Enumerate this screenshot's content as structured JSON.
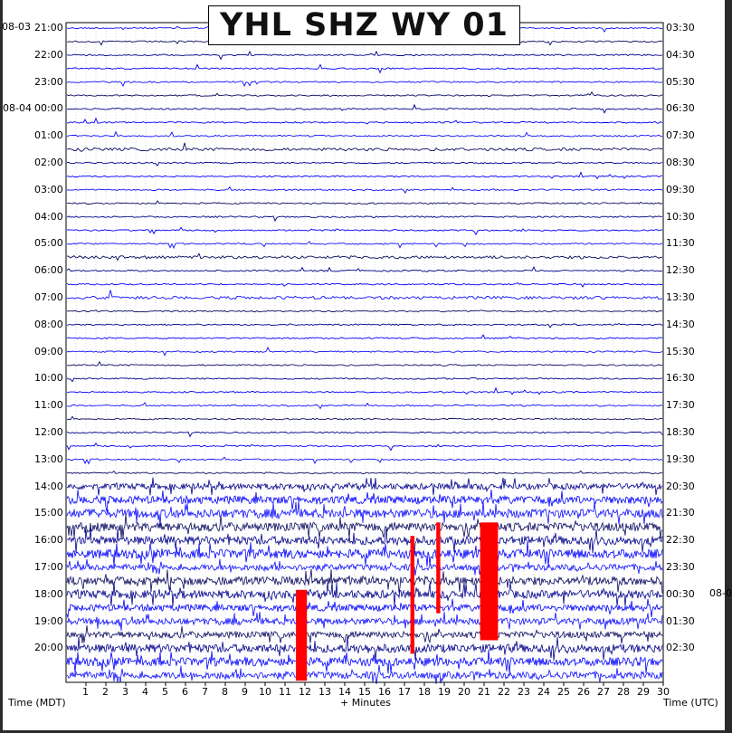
{
  "title": "YHL SHZ WY 01",
  "left_start_date": "08-03",
  "left_date_change": "08-04",
  "right_date_change": "08-0",
  "xlabel_left": "Time (MDT)",
  "xlabel_center": "+ Minutes",
  "xlabel_right": "Time (UTC)",
  "chart_data": {
    "type": "line",
    "title": "YHL SHZ WY 01",
    "x_ticks": [
      "1",
      "2",
      "3",
      "4",
      "5",
      "6",
      "7",
      "8",
      "9",
      "10",
      "11",
      "12",
      "13",
      "14",
      "15",
      "16",
      "17",
      "18",
      "19",
      "20",
      "21",
      "22",
      "23",
      "24",
      "25",
      "26",
      "27",
      "28",
      "29",
      "30"
    ],
    "xlim": [
      0,
      30
    ],
    "x_unit": "minutes",
    "rows_per_hour": 2,
    "row_duration_minutes": 30,
    "left_hour_labels": [
      {
        "date": "08-03",
        "time": "21:00"
      },
      {
        "date": "",
        "time": "22:00"
      },
      {
        "date": "",
        "time": "23:00"
      },
      {
        "date": "08-04",
        "time": "00:00"
      },
      {
        "date": "",
        "time": "01:00"
      },
      {
        "date": "",
        "time": "02:00"
      },
      {
        "date": "",
        "time": "03:00"
      },
      {
        "date": "",
        "time": "04:00"
      },
      {
        "date": "",
        "time": "05:00"
      },
      {
        "date": "",
        "time": "06:00"
      },
      {
        "date": "",
        "time": "07:00"
      },
      {
        "date": "",
        "time": "08:00"
      },
      {
        "date": "",
        "time": "09:00"
      },
      {
        "date": "",
        "time": "10:00"
      },
      {
        "date": "",
        "time": "11:00"
      },
      {
        "date": "",
        "time": "12:00"
      },
      {
        "date": "",
        "time": "13:00"
      },
      {
        "date": "",
        "time": "14:00"
      },
      {
        "date": "",
        "time": "15:00"
      },
      {
        "date": "",
        "time": "16:00"
      },
      {
        "date": "",
        "time": "17:00"
      },
      {
        "date": "",
        "time": "18:00"
      },
      {
        "date": "",
        "time": "19:00"
      },
      {
        "date": "",
        "time": "20:00"
      }
    ],
    "right_hour_labels": [
      "03:30",
      "04:30",
      "05:30",
      "06:30",
      "07:30",
      "08:30",
      "09:30",
      "10:30",
      "11:30",
      "12:30",
      "13:30",
      "14:30",
      "15:30",
      "16:30",
      "17:30",
      "18:30",
      "19:30",
      "20:30",
      "21:30",
      "22:30",
      "23:30",
      "00:30",
      "01:30",
      "02:30"
    ],
    "trace_colors": [
      "#1010ff",
      "#0a0a60",
      "#00008b",
      "#0000ff"
    ],
    "clip_color": "#ff0000",
    "row_activity": [
      1,
      1,
      1,
      1,
      1,
      1,
      1,
      1,
      1,
      2,
      1,
      1,
      1,
      1,
      1,
      1,
      1,
      2,
      1,
      1,
      2,
      1,
      1,
      1,
      1,
      1,
      1,
      1,
      1,
      1,
      1,
      1,
      1,
      1,
      1,
      1,
      1,
      1,
      1,
      1,
      1,
      1,
      1,
      1,
      1,
      1,
      1,
      1,
      1
    ],
    "saturated_segments": [
      {
        "row_start": 42,
        "row_end": 48,
        "x_start": 11.55,
        "x_end": 12.1
      },
      {
        "row_start": 38,
        "row_end": 46,
        "x_start": 17.3,
        "x_end": 17.5
      },
      {
        "row_start": 37,
        "row_end": 43,
        "x_start": 18.6,
        "x_end": 18.8
      },
      {
        "row_start": 37,
        "row_end": 45,
        "x_start": 20.8,
        "x_end": 21.7
      }
    ],
    "grid": true,
    "background_noise_from_row": 34
  }
}
